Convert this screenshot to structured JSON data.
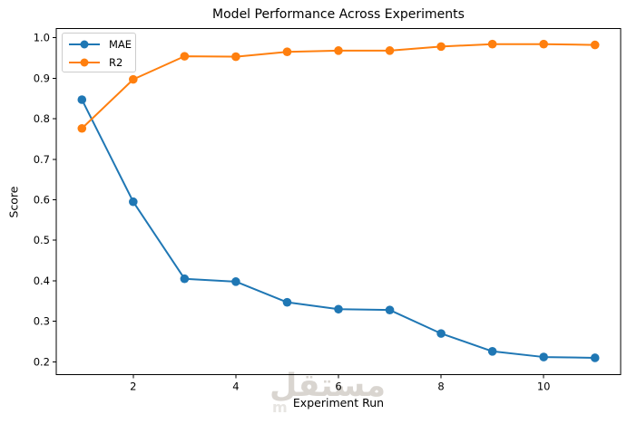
{
  "figure": {
    "watermark": {
      "arabic": "مستقل",
      "latin_visible": "m"
    }
  },
  "chart_data": {
    "type": "line",
    "title": "Model Performance Across Experiments",
    "xlabel": "Experiment Run",
    "ylabel": "Score",
    "x": [
      1,
      2,
      3,
      4,
      5,
      6,
      7,
      8,
      9,
      10,
      11
    ],
    "series": [
      {
        "name": "MAE",
        "color": "#1f77b4",
        "marker": "circle",
        "values": [
          0.847,
          0.595,
          0.405,
          0.398,
          0.347,
          0.33,
          0.328,
          0.27,
          0.226,
          0.212,
          0.21
        ]
      },
      {
        "name": "R2",
        "color": "#ff7f0e",
        "marker": "circle",
        "values": [
          0.776,
          0.897,
          0.954,
          0.953,
          0.965,
          0.968,
          0.968,
          0.978,
          0.984,
          0.984,
          0.982
        ]
      }
    ],
    "xlim": [
      0.5,
      11.5
    ],
    "ylim": [
      0.169,
      1.022
    ],
    "xticks": [
      2,
      4,
      6,
      8,
      10
    ],
    "yticks": [
      0.2,
      0.3,
      0.4,
      0.5,
      0.6,
      0.7,
      0.8,
      0.9,
      1.0
    ],
    "grid": false,
    "legend_position": "upper left",
    "frame_color": "#000000",
    "text_color": "#000000"
  }
}
